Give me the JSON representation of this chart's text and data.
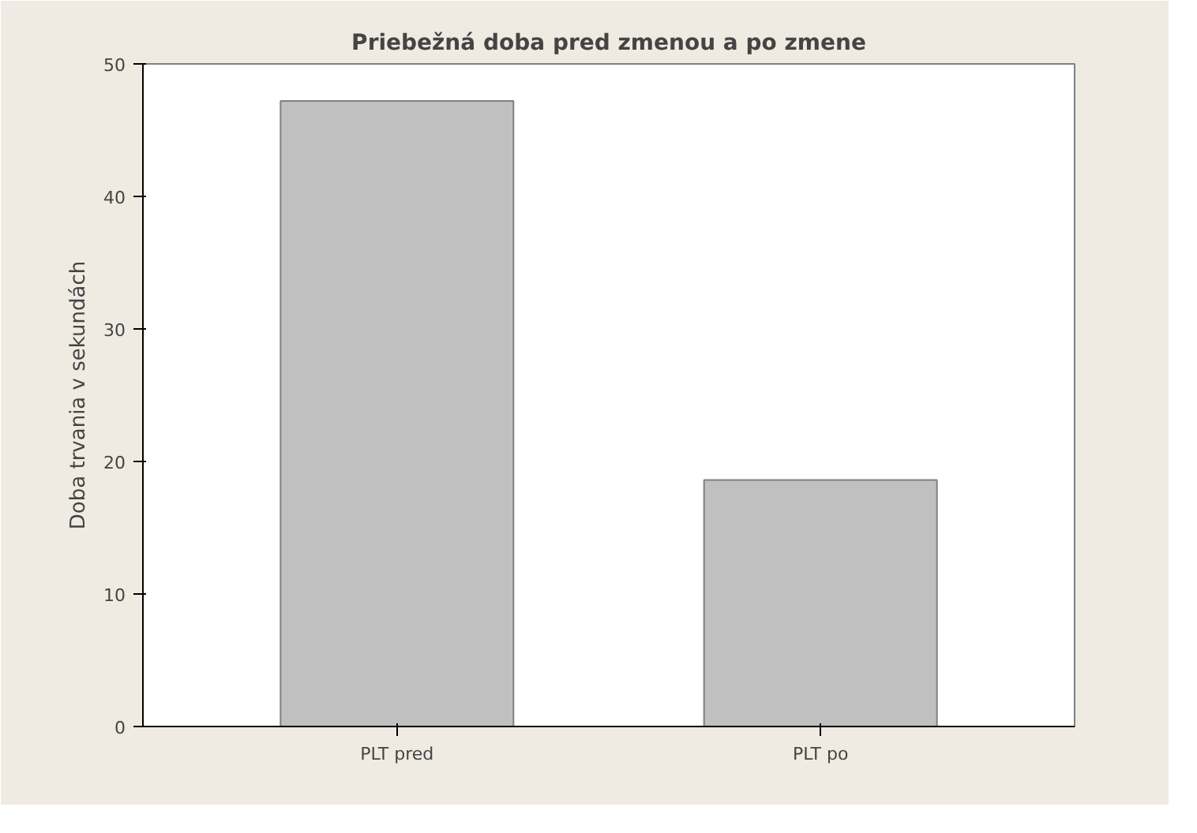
{
  "chart_data": {
    "type": "bar",
    "title": "Priebežná doba pred zmenou a po zmene",
    "ylabel": "Doba trvania v sekundách",
    "categories": [
      "PLT pred",
      "PLT po"
    ],
    "values": [
      47.2,
      18.6
    ],
    "color": "#c0c0c0",
    "ylim": [
      0,
      50
    ],
    "yticks": [
      0,
      10,
      20,
      30,
      40,
      50
    ],
    "grid": false
  }
}
